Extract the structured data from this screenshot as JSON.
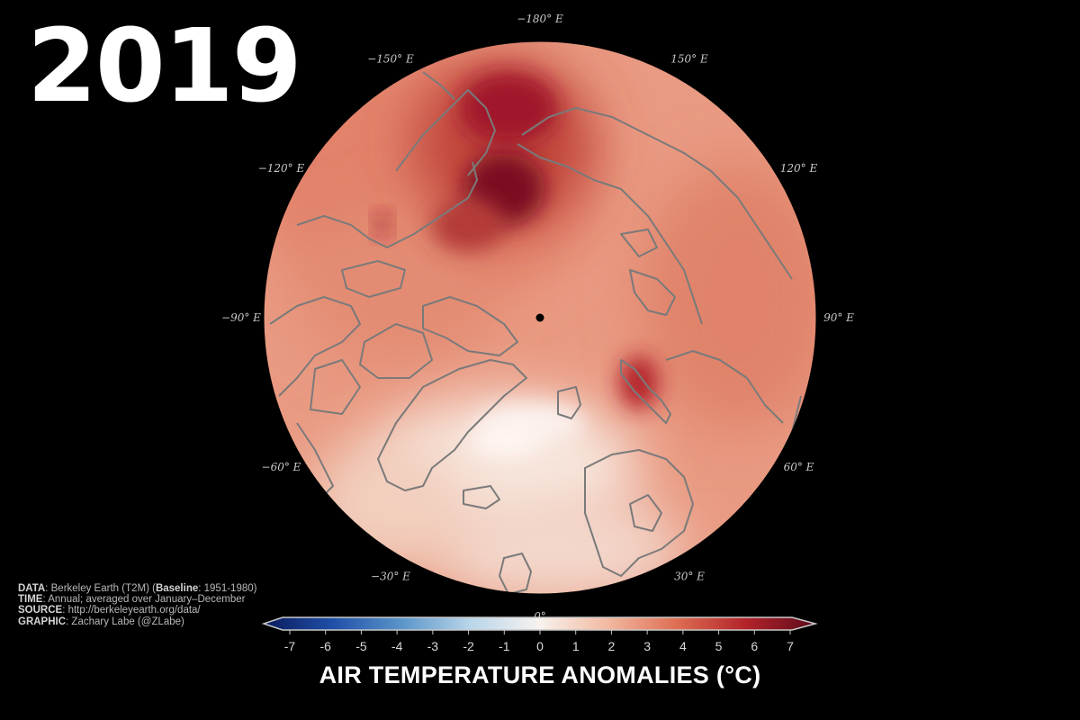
{
  "year": "2019",
  "map": {
    "projection": "polar-stereographic-north",
    "longitude_labels": [
      {
        "text": "−180° E",
        "deg": 180
      },
      {
        "text": "150° E",
        "deg": 150
      },
      {
        "text": "120° E",
        "deg": 120
      },
      {
        "text": "90° E",
        "deg": 90
      },
      {
        "text": "60° E",
        "deg": 60
      },
      {
        "text": "30° E",
        "deg": 30
      },
      {
        "text": "0°",
        "deg": 0
      },
      {
        "text": "−30° E",
        "deg": -30
      },
      {
        "text": "−60° E",
        "deg": -60
      },
      {
        "text": "−90° E",
        "deg": -90
      },
      {
        "text": "−120° E",
        "deg": -120
      },
      {
        "text": "−150° E",
        "deg": -150
      }
    ],
    "pole_marker": "north-pole-dot",
    "coastline_color": "#7a7a7a"
  },
  "credits": [
    {
      "label": "DATA",
      "text": ": Berkeley Earth (T2M) (",
      "label2": "Baseline",
      "text2": ": 1951-1980)"
    },
    {
      "label": "TIME",
      "text": ": Annual; averaged over January–December"
    },
    {
      "label": "SOURCE",
      "text": ": http://berkeleyearth.org/data/"
    },
    {
      "label": "GRAPHIC",
      "text": ": Zachary Labe (@ZLabe)"
    }
  ],
  "colorbar": {
    "title": "AIR TEMPERATURE ANOMALIES (°C)",
    "min": -7,
    "max": 7,
    "ticks": [
      "-7",
      "-6",
      "-5",
      "-4",
      "-3",
      "-2",
      "-1",
      "0",
      "1",
      "2",
      "3",
      "4",
      "5",
      "6",
      "7"
    ],
    "extend": "both",
    "colors": [
      "#0b1a5c",
      "#1f4fa8",
      "#5b95c9",
      "#b9d6ea",
      "#f7f2ee",
      "#f2b8a0",
      "#dd6d52",
      "#b2232a",
      "#5c0a1a"
    ]
  }
}
